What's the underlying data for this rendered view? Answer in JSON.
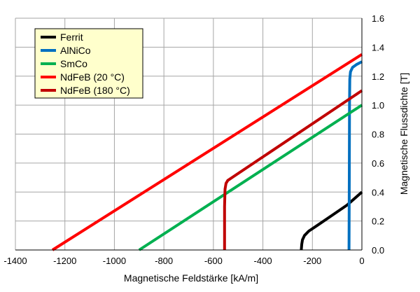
{
  "chart_data": {
    "type": "line",
    "xlabel": "Magnetische Feldstärke [kA/m]",
    "ylabel": "Magnetische Flussdichte [T]",
    "xlim": [
      -1400,
      0
    ],
    "ylim": [
      0,
      1.6
    ],
    "xticks": [
      -1400,
      -1200,
      -1000,
      -800,
      -600,
      -400,
      -200,
      0
    ],
    "xtick_labels": [
      "-1400",
      "-1200",
      "-1000",
      "-800",
      "-600",
      "-400",
      "-200",
      "0"
    ],
    "yticks": [
      0,
      0.2,
      0.4,
      0.6,
      0.8,
      1.0,
      1.2,
      1.4,
      1.6
    ],
    "ytick_labels": [
      "0.0",
      "0.2",
      "0.4",
      "0.6",
      "0.8",
      "1.0",
      "1.2",
      "1.4",
      "1.6"
    ],
    "grid": true,
    "legend_position": "top-left",
    "series": [
      {
        "name": "Ferrit",
        "color": "#000000",
        "points": [
          [
            -245,
            0
          ],
          [
            -243,
            0.04
          ],
          [
            -240,
            0.07
          ],
          [
            -232,
            0.1
          ],
          [
            -215,
            0.13
          ],
          [
            -180,
            0.17
          ],
          [
            -120,
            0.24
          ],
          [
            -60,
            0.31
          ],
          [
            0,
            0.4
          ]
        ]
      },
      {
        "name": "AlNiCo",
        "color": "#0070c0",
        "points": [
          [
            -52,
            0
          ],
          [
            -51,
            0.5
          ],
          [
            -50,
            1.0
          ],
          [
            -49,
            1.18
          ],
          [
            -46,
            1.23
          ],
          [
            -38,
            1.26
          ],
          [
            -22,
            1.28
          ],
          [
            0,
            1.3
          ]
        ]
      },
      {
        "name": "SmCo",
        "color": "#00b050",
        "points": [
          [
            -900,
            0
          ],
          [
            0,
            1.0
          ]
        ]
      },
      {
        "name": "NdFeB (20 °C)",
        "color": "#ff0000",
        "points": [
          [
            -1250,
            0
          ],
          [
            0,
            1.35
          ]
        ]
      },
      {
        "name": "NdFeB (180 °C)",
        "color": "#c00000",
        "points": [
          [
            -555,
            0
          ],
          [
            -555,
            0.3
          ],
          [
            -553,
            0.42
          ],
          [
            -549,
            0.46
          ],
          [
            -542,
            0.48
          ],
          [
            -525,
            0.5
          ],
          [
            0,
            1.1
          ]
        ]
      }
    ]
  }
}
